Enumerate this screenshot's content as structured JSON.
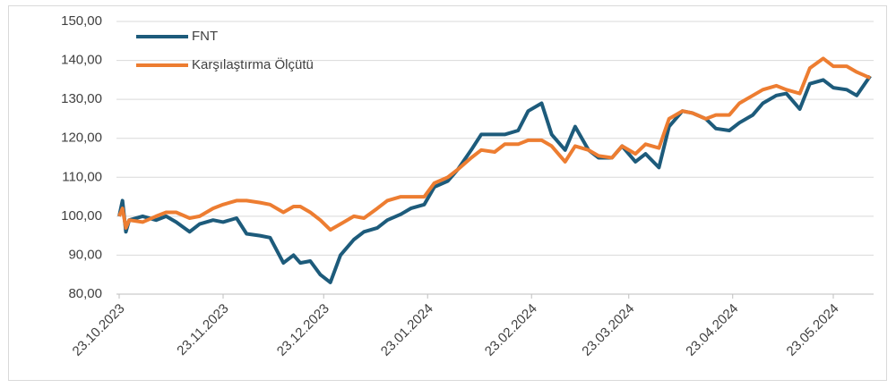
{
  "chart_data": {
    "type": "line",
    "x": [
      "23.10.2023",
      "24.10.2023",
      "25.10.2023",
      "26.10.2023",
      "30.10.2023",
      "03.11.2023",
      "06.11.2023",
      "09.11.2023",
      "13.11.2023",
      "16.11.2023",
      "20.11.2023",
      "23.11.2023",
      "27.11.2023",
      "30.11.2023",
      "04.12.2023",
      "07.12.2023",
      "11.12.2023",
      "14.12.2023",
      "16.12.2023",
      "19.12.2023",
      "22.12.2023",
      "25.12.2023",
      "28.12.2023",
      "01.01.2024",
      "04.01.2024",
      "08.01.2024",
      "11.01.2024",
      "15.01.2024",
      "18.01.2024",
      "22.01.2024",
      "25.01.2024",
      "29.01.2024",
      "01.02.2024",
      "05.02.2024",
      "08.02.2024",
      "12.02.2024",
      "15.02.2024",
      "19.02.2024",
      "22.02.2024",
      "26.02.2024",
      "29.02.2024",
      "04.03.2024",
      "07.03.2024",
      "11.03.2024",
      "14.03.2024",
      "18.03.2024",
      "21.03.2024",
      "25.03.2024",
      "28.03.2024",
      "01.04.2024",
      "04.04.2024",
      "08.04.2024",
      "11.04.2024",
      "15.04.2024",
      "18.04.2024",
      "22.04.2024",
      "25.04.2024",
      "29.04.2024",
      "02.05.2024",
      "06.05.2024",
      "09.05.2024",
      "13.05.2024",
      "16.05.2024",
      "20.05.2024",
      "23.05.2024",
      "27.05.2024",
      "30.05.2024",
      "03.06.2024"
    ],
    "series": [
      {
        "name": "FNT",
        "color": "#1d5b7b",
        "values": [
          100,
          104,
          96,
          99,
          100,
          99,
          100,
          98.5,
          96,
          98,
          99,
          98.5,
          99.5,
          95.5,
          95,
          94.5,
          88,
          90,
          88,
          88.5,
          85,
          83,
          90,
          94,
          96,
          97,
          99,
          100.5,
          102,
          103,
          107.5,
          109,
          112,
          117,
          121,
          121,
          121,
          122,
          127,
          129,
          121,
          117,
          123,
          117,
          115,
          115,
          118,
          114,
          116,
          112.5,
          123,
          127,
          126.5,
          125,
          122.5,
          122,
          124,
          126,
          129,
          131,
          131.5,
          127.5,
          134,
          135,
          133,
          132.5,
          131,
          136
        ]
      },
      {
        "name": "Karşılaştırma Ölçütü",
        "color": "#ed7d31",
        "values": [
          100,
          102,
          97,
          99,
          98.5,
          100,
          101,
          101,
          99.5,
          100,
          102,
          103,
          104,
          104,
          103.5,
          103,
          101,
          102.5,
          102.5,
          101,
          99,
          96.5,
          98,
          100,
          99.5,
          102,
          104,
          105,
          105,
          105,
          108.5,
          110,
          112,
          115,
          117,
          116.5,
          118.5,
          118.5,
          119.5,
          119.5,
          118,
          114,
          118,
          117,
          115.5,
          115,
          118,
          116,
          118.5,
          117.5,
          125,
          127,
          126.5,
          125,
          126,
          126,
          129,
          131,
          132.5,
          133.5,
          132.5,
          131.5,
          138,
          140.5,
          138.5,
          138.5,
          137,
          135.5
        ]
      }
    ],
    "xticks": [
      "23.10.2023",
      "23.11.2023",
      "23.12.2023",
      "23.01.2024",
      "23.02.2024",
      "23.03.2024",
      "23.04.2024",
      "23.05.2024"
    ],
    "ylim": [
      80,
      150
    ],
    "yticks": [
      {
        "value": 80,
        "label": "80,00"
      },
      {
        "value": 90,
        "label": "90,00"
      },
      {
        "value": 100,
        "label": "100,00"
      },
      {
        "value": 110,
        "label": "110,00"
      },
      {
        "value": 120,
        "label": "120,00"
      },
      {
        "value": 130,
        "label": "130,00"
      },
      {
        "value": 140,
        "label": "140,00"
      },
      {
        "value": 150,
        "label": "150,00"
      }
    ],
    "grid": true,
    "legend": "top-left"
  }
}
